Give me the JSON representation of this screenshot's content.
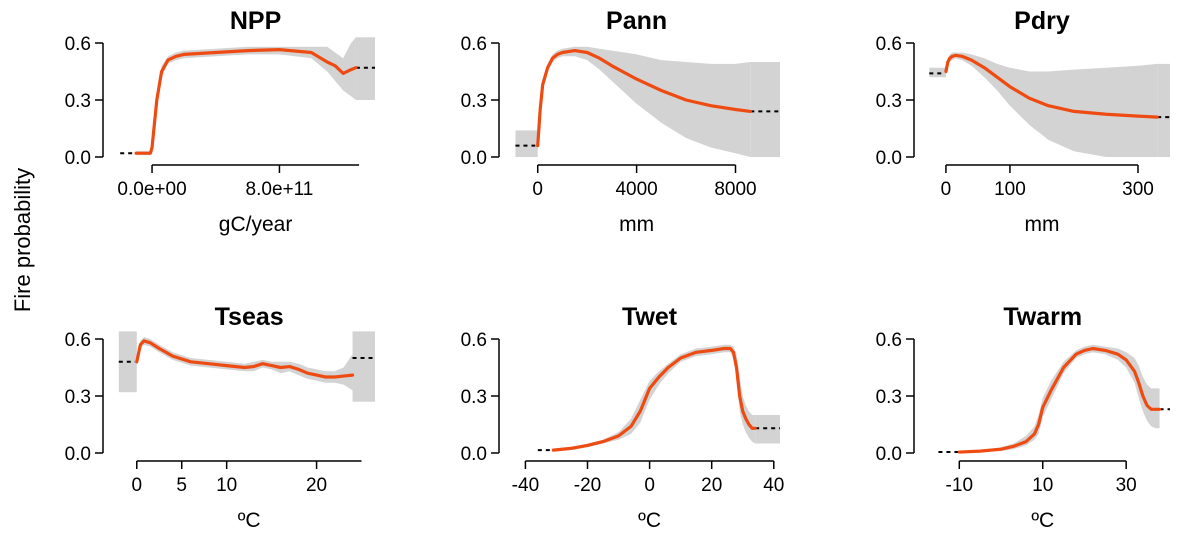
{
  "figure": {
    "ylabel": "Fire probability"
  },
  "colors": {
    "line": "#ee4b12",
    "band": "#d3d3d3",
    "dashed": "#000000"
  },
  "chart_data": [
    {
      "type": "line",
      "title": "NPP",
      "xlabel": "gC/year",
      "xlim": [
        -220000000000.0,
        1400000000000.0
      ],
      "ylim": [
        0,
        0.6
      ],
      "xticks": [
        0,
        800000000000.0
      ],
      "xtick_labels": [
        "0.0e+00",
        "8.0e+11"
      ],
      "xaxis_extent": [
        0,
        1300000000000.0
      ],
      "yticks": [
        0,
        0.3,
        0.6
      ],
      "ytick_labels": [
        "0.0",
        "0.3",
        "0.6"
      ],
      "x": [
        -100000000000.0,
        -50000000000.0,
        -10000000000.0,
        0,
        30000000000.0,
        60000000000.0,
        100000000000.0,
        150000000000.0,
        200000000000.0,
        400000000000.0,
        600000000000.0,
        800000000000.0,
        1000000000000.0,
        1100000000000.0,
        1150000000000.0,
        1200000000000.0,
        1250000000000.0,
        1280000000000.0
      ],
      "y": [
        0.02,
        0.02,
        0.02,
        0.05,
        0.3,
        0.45,
        0.51,
        0.53,
        0.54,
        0.55,
        0.56,
        0.565,
        0.55,
        0.5,
        0.48,
        0.44,
        0.46,
        0.47
      ],
      "upper": [
        0.03,
        0.03,
        0.03,
        0.08,
        0.33,
        0.48,
        0.53,
        0.55,
        0.56,
        0.57,
        0.58,
        0.58,
        0.58,
        0.58,
        0.55,
        0.52,
        0.6,
        0.63
      ],
      "lower": [
        0.01,
        0.01,
        0.01,
        0.02,
        0.27,
        0.42,
        0.49,
        0.51,
        0.52,
        0.53,
        0.54,
        0.54,
        0.52,
        0.45,
        0.4,
        0.35,
        0.32,
        0.3
      ],
      "dashed_left": {
        "x": [
          -200000000000.0,
          -30000000000.0
        ],
        "y": 0.02
      },
      "dashed_right": {
        "x": [
          1280000000000.0,
          1400000000000.0
        ],
        "y": 0.47
      },
      "band_right": {
        "x": [
          1280000000000.0,
          1400000000000.0
        ],
        "upper": 0.63,
        "lower": 0.3
      }
    },
    {
      "type": "line",
      "title": "Pann",
      "xlabel": "mm",
      "xlim": [
        -1000,
        9800
      ],
      "ylim": [
        0,
        0.6
      ],
      "xticks": [
        0,
        4000,
        8000
      ],
      "xtick_labels": [
        "0",
        "4000",
        "8000"
      ],
      "xaxis_extent": [
        0,
        8000
      ],
      "yticks": [
        0,
        0.3,
        0.6
      ],
      "ytick_labels": [
        "0.0",
        "0.3",
        "0.6"
      ],
      "x": [
        0,
        100,
        200,
        400,
        600,
        800,
        1000,
        1500,
        2000,
        2500,
        3000,
        4000,
        5000,
        6000,
        7000,
        8000,
        8600
      ],
      "y": [
        0.06,
        0.25,
        0.38,
        0.47,
        0.52,
        0.54,
        0.55,
        0.56,
        0.55,
        0.52,
        0.48,
        0.41,
        0.35,
        0.3,
        0.27,
        0.25,
        0.24
      ],
      "upper": [
        0.1,
        0.29,
        0.41,
        0.49,
        0.54,
        0.56,
        0.57,
        0.58,
        0.58,
        0.57,
        0.56,
        0.54,
        0.51,
        0.5,
        0.49,
        0.49,
        0.5
      ],
      "lower": [
        0.03,
        0.21,
        0.35,
        0.45,
        0.5,
        0.52,
        0.53,
        0.53,
        0.51,
        0.46,
        0.4,
        0.28,
        0.18,
        0.1,
        0.05,
        0.02,
        0.0
      ],
      "dashed_left": {
        "x": [
          -900,
          -100
        ],
        "y": 0.06
      },
      "dashed_right": {
        "x": [
          8600,
          9800
        ],
        "y": 0.24
      },
      "band_left": {
        "x": [
          -900,
          0
        ],
        "upper": 0.14,
        "lower": 0.0
      },
      "band_right": {
        "x": [
          8600,
          9800
        ],
        "upper": 0.5,
        "lower": 0.0
      }
    },
    {
      "type": "line",
      "title": "Pdry",
      "xlabel": "mm",
      "xlim": [
        -28,
        350
      ],
      "ylim": [
        0,
        0.6
      ],
      "xticks": [
        0,
        100,
        300
      ],
      "xtick_labels": [
        "0",
        "100",
        "300"
      ],
      "xaxis_extent": [
        0,
        300
      ],
      "yticks": [
        0,
        0.3,
        0.6
      ],
      "ytick_labels": [
        "0.0",
        "0.3",
        "0.6"
      ],
      "x": [
        0,
        3,
        6,
        10,
        15,
        25,
        40,
        60,
        80,
        100,
        130,
        160,
        200,
        250,
        300,
        330
      ],
      "y": [
        0.45,
        0.5,
        0.52,
        0.53,
        0.535,
        0.53,
        0.51,
        0.47,
        0.42,
        0.37,
        0.31,
        0.27,
        0.24,
        0.225,
        0.215,
        0.21
      ],
      "upper": [
        0.47,
        0.52,
        0.54,
        0.55,
        0.55,
        0.55,
        0.54,
        0.52,
        0.49,
        0.47,
        0.45,
        0.45,
        0.46,
        0.47,
        0.48,
        0.49
      ],
      "lower": [
        0.43,
        0.48,
        0.5,
        0.51,
        0.52,
        0.51,
        0.48,
        0.42,
        0.35,
        0.27,
        0.17,
        0.09,
        0.03,
        0.0,
        0.0,
        0.0
      ],
      "dashed_left": {
        "x": [
          -26,
          -2
        ],
        "y": 0.44
      },
      "dashed_right": {
        "x": [
          330,
          350
        ],
        "y": 0.21
      },
      "band_left": {
        "x": [
          -26,
          0
        ],
        "upper": 0.47,
        "lower": 0.42
      },
      "band_right": {
        "x": [
          330,
          350
        ],
        "upper": 0.49,
        "lower": 0.0
      }
    },
    {
      "type": "line",
      "title": "Tseas",
      "xlabel": "ºC",
      "xlim": [
        -2.2,
        26.5
      ],
      "ylim": [
        0,
        0.6
      ],
      "xticks": [
        0,
        5,
        10,
        20
      ],
      "xtick_labels": [
        "0",
        "5",
        "10",
        "20"
      ],
      "xaxis_extent": [
        0,
        25
      ],
      "yticks": [
        0,
        0.3,
        0.6
      ],
      "ytick_labels": [
        "0.0",
        "0.3",
        "0.6"
      ],
      "x": [
        0,
        0.4,
        0.8,
        1.5,
        2.5,
        4,
        6,
        8,
        10,
        12,
        13,
        14,
        15,
        16,
        17,
        18,
        19,
        20,
        21,
        22,
        23,
        24
      ],
      "y": [
        0.48,
        0.57,
        0.59,
        0.58,
        0.55,
        0.51,
        0.48,
        0.47,
        0.46,
        0.45,
        0.455,
        0.47,
        0.46,
        0.45,
        0.455,
        0.44,
        0.42,
        0.41,
        0.4,
        0.4,
        0.405,
        0.41
      ],
      "upper": [
        0.5,
        0.59,
        0.61,
        0.6,
        0.57,
        0.53,
        0.5,
        0.49,
        0.48,
        0.47,
        0.48,
        0.49,
        0.48,
        0.48,
        0.48,
        0.47,
        0.45,
        0.44,
        0.43,
        0.43,
        0.45,
        0.52
      ],
      "lower": [
        0.46,
        0.55,
        0.57,
        0.56,
        0.53,
        0.49,
        0.46,
        0.45,
        0.44,
        0.43,
        0.43,
        0.45,
        0.44,
        0.42,
        0.43,
        0.41,
        0.39,
        0.38,
        0.37,
        0.37,
        0.36,
        0.33
      ],
      "dashed_left": {
        "x": [
          -2.0,
          -0.2
        ],
        "y": 0.48
      },
      "dashed_right": {
        "x": [
          24,
          26.5
        ],
        "y": 0.5
      },
      "band_left": {
        "x": [
          -2.0,
          0
        ],
        "upper": 0.64,
        "lower": 0.32
      },
      "band_right": {
        "x": [
          24,
          26.5
        ],
        "upper": 0.64,
        "lower": 0.27
      }
    },
    {
      "type": "line",
      "title": "Twet",
      "xlabel": "ºC",
      "xlim": [
        -44,
        42
      ],
      "ylim": [
        0,
        0.6
      ],
      "xticks": [
        -40,
        -20,
        0,
        20,
        40
      ],
      "xtick_labels": [
        "-40",
        "-20",
        "0",
        "20",
        "40"
      ],
      "xaxis_extent": [
        -40,
        40
      ],
      "yticks": [
        0,
        0.3,
        0.6
      ],
      "ytick_labels": [
        "0.0",
        "0.3",
        "0.6"
      ],
      "x": [
        -31,
        -25,
        -20,
        -15,
        -10,
        -6,
        -3,
        0,
        3,
        6,
        10,
        15,
        20,
        24,
        26,
        27,
        28,
        29,
        30,
        31,
        32,
        33,
        34
      ],
      "y": [
        0.015,
        0.025,
        0.04,
        0.06,
        0.09,
        0.14,
        0.22,
        0.34,
        0.4,
        0.45,
        0.5,
        0.53,
        0.54,
        0.55,
        0.55,
        0.53,
        0.45,
        0.3,
        0.22,
        0.18,
        0.15,
        0.13,
        0.13
      ],
      "upper": [
        0.02,
        0.03,
        0.05,
        0.07,
        0.11,
        0.18,
        0.28,
        0.38,
        0.43,
        0.47,
        0.52,
        0.55,
        0.56,
        0.57,
        0.57,
        0.56,
        0.52,
        0.4,
        0.3,
        0.25,
        0.22,
        0.2,
        0.2
      ],
      "lower": [
        0.01,
        0.02,
        0.03,
        0.05,
        0.07,
        0.1,
        0.16,
        0.28,
        0.36,
        0.42,
        0.48,
        0.51,
        0.52,
        0.53,
        0.53,
        0.5,
        0.4,
        0.22,
        0.15,
        0.11,
        0.08,
        0.06,
        0.05
      ],
      "dashed_left": {
        "x": [
          -36,
          -31
        ],
        "y": 0.015
      },
      "dashed_right": {
        "x": [
          34,
          42
        ],
        "y": 0.13
      },
      "band_right": {
        "x": [
          34,
          42
        ],
        "upper": 0.2,
        "lower": 0.05
      }
    },
    {
      "type": "line",
      "title": "Twarm",
      "xlabel": "ºC",
      "xlim": [
        -17.5,
        40.5
      ],
      "ylim": [
        0,
        0.6
      ],
      "xticks": [
        -10,
        10,
        30
      ],
      "xtick_labels": [
        "-10",
        "10",
        "30"
      ],
      "xaxis_extent": [
        -10,
        30
      ],
      "yticks": [
        0,
        0.3,
        0.6
      ],
      "ytick_labels": [
        "0.0",
        "0.3",
        "0.6"
      ],
      "x": [
        -10,
        -5,
        0,
        3,
        6,
        8,
        9,
        10,
        12,
        15,
        18,
        20,
        22,
        25,
        28,
        30,
        32,
        33,
        34,
        35,
        36,
        37,
        38
      ],
      "y": [
        0.005,
        0.01,
        0.02,
        0.035,
        0.06,
        0.1,
        0.15,
        0.24,
        0.33,
        0.45,
        0.52,
        0.54,
        0.55,
        0.54,
        0.52,
        0.49,
        0.43,
        0.37,
        0.3,
        0.25,
        0.23,
        0.23,
        0.23
      ],
      "upper": [
        0.01,
        0.015,
        0.03,
        0.05,
        0.09,
        0.14,
        0.2,
        0.29,
        0.38,
        0.48,
        0.54,
        0.56,
        0.57,
        0.56,
        0.55,
        0.53,
        0.5,
        0.46,
        0.4,
        0.36,
        0.34,
        0.34,
        0.34
      ],
      "lower": [
        0.0,
        0.005,
        0.01,
        0.02,
        0.04,
        0.07,
        0.1,
        0.19,
        0.28,
        0.42,
        0.5,
        0.52,
        0.53,
        0.52,
        0.49,
        0.45,
        0.37,
        0.29,
        0.22,
        0.17,
        0.14,
        0.13,
        0.13
      ],
      "dashed_left": {
        "x": [
          -15,
          -10
        ],
        "y": 0.005
      },
      "dashed_right": {
        "x": [
          38,
          40.5
        ],
        "y": 0.23
      }
    }
  ]
}
